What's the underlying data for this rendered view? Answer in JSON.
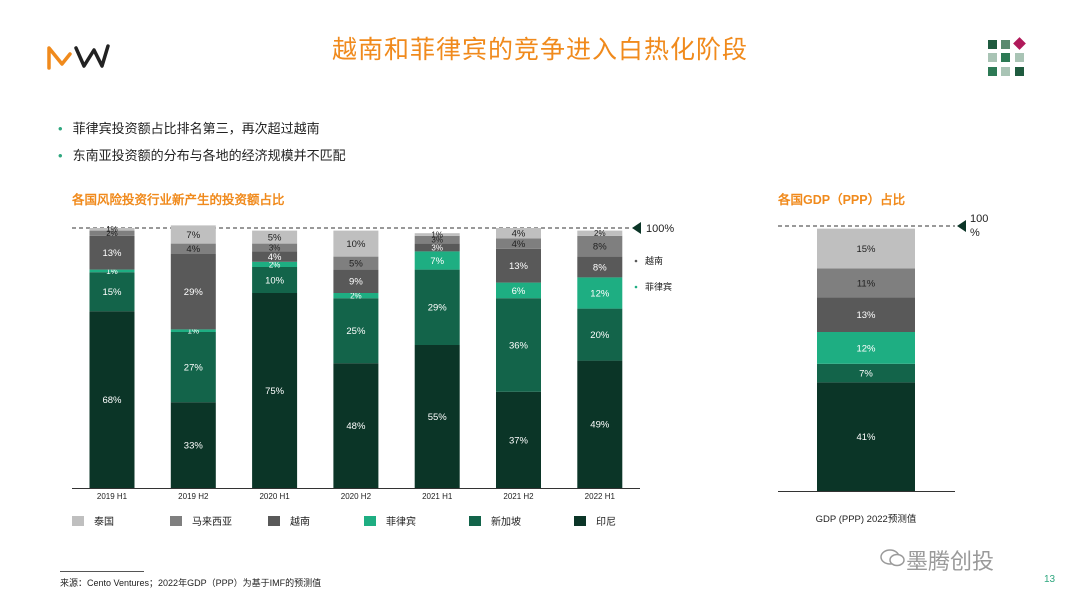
{
  "title": "越南和菲律宾的竞争进入白热化阶段",
  "bullets": [
    "菲律宾投资额占比排名第三，再次超过越南",
    "东南亚投资额的分布与各地的经济规模并不匹配"
  ],
  "colors": {
    "accent": "#F08A1C",
    "thailand": "#BFBFBF",
    "malaysia": "#7F7F7F",
    "vietnam": "#595959",
    "philippines": "#1EAE82",
    "singapore": "#13644A",
    "indonesia": "#0B3527"
  },
  "chart_data": [
    {
      "type": "bar",
      "stacked": true,
      "title": "各国风险投资行业新产生的投资额占比",
      "categories": [
        "2019 H1",
        "2019 H2",
        "2020 H1",
        "2020 H2",
        "2021 H1",
        "2021 H2",
        "2022 H1"
      ],
      "series": [
        {
          "name": "印尼",
          "color": "#0B3527",
          "values": [
            68,
            33,
            75,
            48,
            55,
            37,
            49
          ]
        },
        {
          "name": "新加坡",
          "color": "#13644A",
          "values": [
            15,
            27,
            10,
            25,
            29,
            36,
            20
          ]
        },
        {
          "name": "菲律宾",
          "color": "#1EAE82",
          "values": [
            1,
            1,
            2,
            2,
            7,
            6,
            12
          ]
        },
        {
          "name": "越南",
          "color": "#595959",
          "values": [
            13,
            29,
            4,
            9,
            3,
            13,
            8
          ]
        },
        {
          "name": "马来西亚",
          "color": "#7F7F7F",
          "values": [
            2,
            4,
            3,
            5,
            3,
            4,
            8
          ]
        },
        {
          "name": "泰国",
          "color": "#BFBFBF",
          "values": [
            1,
            7,
            5,
            10,
            1,
            4,
            2
          ]
        }
      ],
      "ylim": [
        0,
        100
      ],
      "reference_label": "100%",
      "annotations": [
        "越南",
        "菲律宾"
      ]
    },
    {
      "type": "bar",
      "stacked": true,
      "title": "各国GDP（PPP）占比",
      "categories": [
        "GDP (PPP) 2022预测值"
      ],
      "series": [
        {
          "name": "印尼",
          "color": "#0B3527",
          "values": [
            41
          ]
        },
        {
          "name": "新加坡",
          "color": "#13644A",
          "values": [
            7
          ]
        },
        {
          "name": "菲律宾",
          "color": "#1EAE82",
          "values": [
            12
          ]
        },
        {
          "name": "越南",
          "color": "#595959",
          "values": [
            13
          ]
        },
        {
          "name": "马来西亚",
          "color": "#7F7F7F",
          "values": [
            11
          ]
        },
        {
          "name": "泰国",
          "color": "#BFBFBF",
          "values": [
            15
          ]
        }
      ],
      "ylim": [
        0,
        100
      ],
      "reference_label": "100%"
    }
  ],
  "legend": [
    {
      "label": "泰国",
      "color": "#BFBFBF"
    },
    {
      "label": "马来西亚",
      "color": "#7F7F7F"
    },
    {
      "label": "越南",
      "color": "#595959"
    },
    {
      "label": "菲律宾",
      "color": "#1EAE82"
    },
    {
      "label": "新加坡",
      "color": "#13644A"
    },
    {
      "label": "印尼",
      "color": "#0B3527"
    }
  ],
  "footnote": "来源：Cento Ventures；2022年GDP（PPP）为基于IMF的预测值",
  "page_number": "13",
  "watermark": "墨腾创投"
}
